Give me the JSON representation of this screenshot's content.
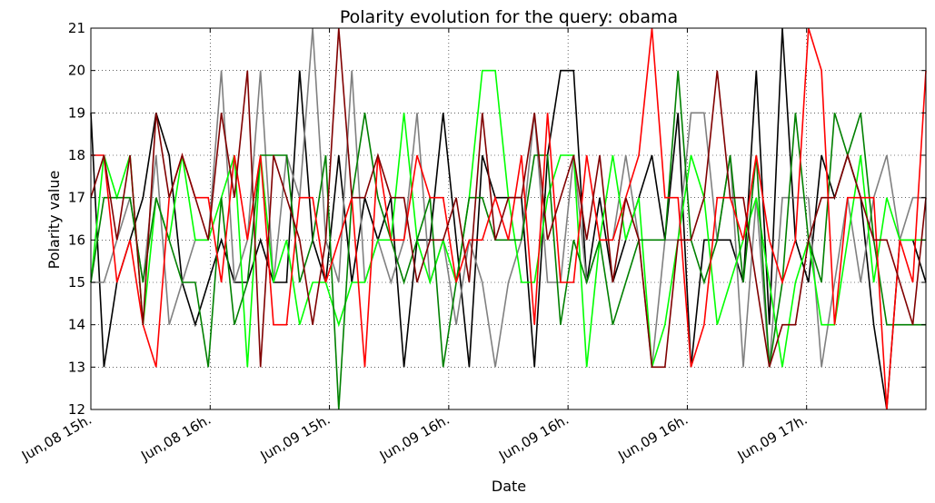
{
  "chart_data": {
    "type": "line",
    "title": "Polarity evolution for the query: obama",
    "xlabel": "Date",
    "ylabel": "Polarity value",
    "ylim": [
      12,
      21
    ],
    "yticks": [
      "12",
      "13",
      "14",
      "15",
      "16",
      "17",
      "18",
      "19",
      "20",
      "21"
    ],
    "xticks": [
      "Jun,08 15h.",
      "Jun,08 16h.",
      "Jun,09 15h.",
      "Jun,09 16h.",
      "Jun,09 16h.",
      "Jun,09 16h.",
      "Jun,09 17h."
    ],
    "grid": true,
    "x": [
      0,
      1,
      2,
      3,
      4,
      5,
      6,
      7,
      8,
      9,
      10,
      11,
      12,
      13,
      14,
      15,
      16,
      17,
      18,
      19,
      20,
      21,
      22,
      23,
      24,
      25,
      26,
      27,
      28,
      29,
      30,
      31,
      32,
      33,
      34,
      35,
      36,
      37,
      38,
      39,
      40,
      41,
      42,
      43,
      44,
      45,
      46,
      47,
      48,
      49,
      50,
      51,
      52,
      53,
      54,
      55,
      56,
      57,
      58,
      59,
      60,
      61,
      62,
      63,
      64
    ],
    "series": [
      {
        "color": "#000000",
        "values": [
          19,
          13,
          15,
          16,
          17,
          19,
          18,
          15,
          14,
          15,
          16,
          15,
          15,
          16,
          15,
          15,
          20,
          16,
          15,
          18,
          15,
          17,
          16,
          17,
          13,
          16,
          16,
          19,
          16,
          13,
          18,
          17,
          17,
          17,
          13,
          18,
          20,
          20,
          15,
          17,
          15,
          16,
          17,
          18,
          16,
          19,
          13,
          16,
          16,
          16,
          15,
          20,
          14,
          21,
          16,
          15,
          18,
          17,
          18,
          17,
          14,
          12,
          16,
          16,
          15
        ]
      },
      {
        "color": "#808080",
        "values": [
          15,
          15,
          16,
          17,
          15,
          18,
          14,
          15,
          16,
          16,
          20,
          15,
          16,
          20,
          15,
          18,
          17,
          21,
          16,
          15,
          20,
          15,
          16,
          15,
          16,
          19,
          15,
          16,
          14,
          16,
          15,
          13,
          15,
          16,
          19,
          15,
          15,
          18,
          15,
          16,
          16,
          18,
          16,
          13,
          16,
          16,
          19,
          19,
          16,
          18,
          13,
          17,
          13,
          17,
          17,
          17,
          13,
          15,
          17,
          15,
          17,
          18,
          16,
          17,
          17
        ]
      },
      {
        "color": "#00ff00",
        "values": [
          15,
          18,
          17,
          18,
          14,
          17,
          16,
          18,
          16,
          16,
          17,
          18,
          13,
          18,
          15,
          16,
          14,
          15,
          15,
          14,
          15,
          15,
          16,
          16,
          19,
          16,
          15,
          16,
          15,
          17,
          20,
          20,
          17,
          15,
          15,
          17,
          18,
          18,
          13,
          16,
          18,
          16,
          17,
          13,
          14,
          16,
          18,
          17,
          14,
          15,
          16,
          17,
          15,
          13,
          15,
          16,
          14,
          14,
          16,
          18,
          15,
          17,
          16,
          16,
          16
        ]
      },
      {
        "color": "#008000",
        "values": [
          15,
          17,
          17,
          17,
          15,
          17,
          16,
          15,
          15,
          13,
          17,
          14,
          15,
          18,
          18,
          18,
          15,
          16,
          18,
          12,
          17,
          19,
          17,
          16,
          15,
          16,
          17,
          13,
          15,
          17,
          17,
          16,
          16,
          16,
          18,
          18,
          14,
          16,
          15,
          16,
          14,
          15,
          16,
          16,
          16,
          20,
          16,
          15,
          16,
          18,
          15,
          18,
          13,
          15,
          19,
          16,
          15,
          19,
          18,
          19,
          16,
          14,
          14,
          14,
          14
        ]
      },
      {
        "color": "#ff0000",
        "values": [
          18,
          18,
          15,
          16,
          14,
          13,
          17,
          18,
          17,
          17,
          15,
          18,
          16,
          18,
          14,
          14,
          17,
          17,
          15,
          16,
          17,
          13,
          18,
          16,
          16,
          18,
          17,
          17,
          15,
          16,
          16,
          17,
          16,
          18,
          14,
          19,
          15,
          15,
          18,
          16,
          16,
          17,
          18,
          21,
          17,
          17,
          13,
          14,
          17,
          17,
          16,
          18,
          16,
          15,
          16,
          21,
          20,
          14,
          17,
          17,
          17,
          12,
          16,
          15,
          20
        ]
      },
      {
        "color": "#800000",
        "values": [
          17,
          18,
          16,
          18,
          14,
          19,
          17,
          18,
          17,
          16,
          19,
          17,
          20,
          13,
          18,
          17,
          16,
          14,
          16,
          21,
          17,
          17,
          18,
          17,
          17,
          15,
          16,
          16,
          17,
          15,
          19,
          16,
          17,
          17,
          19,
          16,
          17,
          18,
          16,
          18,
          15,
          17,
          16,
          13,
          13,
          16,
          16,
          17,
          20,
          17,
          17,
          15,
          13,
          14,
          14,
          16,
          17,
          17,
          18,
          17,
          16,
          16,
          15,
          14,
          17
        ]
      }
    ]
  }
}
